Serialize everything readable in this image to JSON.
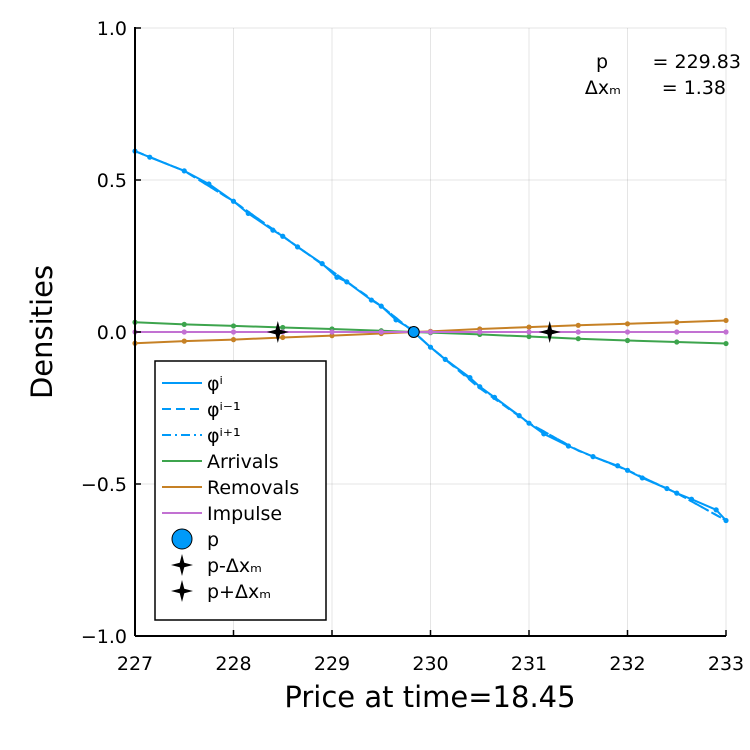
{
  "chart_data": {
    "type": "line",
    "title": "",
    "xlabel": "Price at time=18.45",
    "ylabel": "Densities",
    "xlim": [
      227,
      233
    ],
    "ylim": [
      -1.0,
      1.0
    ],
    "xticks": [
      "227",
      "228",
      "229",
      "230",
      "231",
      "232",
      "233"
    ],
    "yticks": [
      "1.0",
      "0.5",
      "0.0",
      "−0.5",
      "−1.0"
    ],
    "grid": true,
    "legend_position": "bottom-left",
    "annotation": {
      "line1_label": "p",
      "line1_value": "= 229.83",
      "line2_label": "Δxₘ",
      "line2_value": "=   1.38"
    },
    "series": [
      {
        "name": "φⁱ",
        "style": "solid",
        "color": "#009af9",
        "x": [
          227.0,
          227.15,
          227.5,
          227.75,
          228.0,
          228.15,
          228.4,
          228.5,
          228.65,
          228.9,
          229.05,
          229.15,
          229.4,
          229.5,
          229.65,
          229.8,
          229.83,
          230.0,
          230.15,
          230.4,
          230.5,
          230.65,
          230.9,
          231.0,
          231.15,
          231.4,
          231.65,
          231.9,
          232.0,
          232.15,
          232.4,
          232.5,
          232.65,
          232.9,
          233.0
        ],
        "y": [
          0.595,
          0.575,
          0.53,
          0.487,
          0.43,
          0.39,
          0.335,
          0.315,
          0.28,
          0.225,
          0.18,
          0.165,
          0.105,
          0.085,
          0.04,
          0.01,
          0.0,
          -0.05,
          -0.09,
          -0.15,
          -0.18,
          -0.215,
          -0.275,
          -0.3,
          -0.335,
          -0.375,
          -0.41,
          -0.44,
          -0.455,
          -0.48,
          -0.515,
          -0.53,
          -0.55,
          -0.585,
          -0.62
        ]
      },
      {
        "name": "φⁱ⁻¹",
        "style": "dashed",
        "color": "#009af9",
        "x": [
          227.0,
          227.5,
          228.0,
          228.5,
          229.0,
          229.5,
          229.83,
          230.0,
          230.5,
          231.0,
          231.5,
          232.0,
          232.5,
          233.0
        ],
        "y": [
          0.595,
          0.53,
          0.43,
          0.315,
          0.2,
          0.085,
          0.0,
          -0.05,
          -0.185,
          -0.3,
          -0.39,
          -0.455,
          -0.53,
          -0.62
        ]
      },
      {
        "name": "φⁱ⁺¹",
        "style": "dashdot",
        "color": "#009af9",
        "x": [
          227.0,
          227.5,
          228.0,
          228.5,
          229.0,
          229.5,
          229.83,
          230.0,
          230.5,
          231.0,
          231.5,
          232.0,
          232.5,
          233.0
        ],
        "y": [
          0.595,
          0.53,
          0.43,
          0.315,
          0.2,
          0.085,
          0.0,
          -0.05,
          -0.18,
          -0.3,
          -0.39,
          -0.455,
          -0.53,
          -0.62
        ]
      },
      {
        "name": "Arrivals",
        "style": "solid",
        "color": "#3da44d",
        "x": [
          227.0,
          227.5,
          228.0,
          228.5,
          229.0,
          229.5,
          229.83,
          230.0,
          230.5,
          231.0,
          231.5,
          232.0,
          232.5,
          233.0
        ],
        "y": [
          0.032,
          0.025,
          0.02,
          0.015,
          0.01,
          0.004,
          0.0,
          -0.002,
          -0.008,
          -0.015,
          -0.022,
          -0.028,
          -0.033,
          -0.038
        ]
      },
      {
        "name": "Removals",
        "style": "solid",
        "color": "#c68125",
        "x": [
          227.0,
          227.5,
          228.0,
          228.5,
          229.0,
          229.5,
          229.83,
          230.0,
          230.5,
          231.0,
          231.5,
          232.0,
          232.5,
          233.0
        ],
        "y": [
          -0.037,
          -0.03,
          -0.025,
          -0.018,
          -0.012,
          -0.005,
          0.0,
          0.002,
          0.01,
          0.016,
          0.022,
          0.027,
          0.032,
          0.038
        ]
      },
      {
        "name": "Impulse",
        "style": "solid",
        "color": "#c271d2",
        "x": [
          227.0,
          227.5,
          228.0,
          228.5,
          229.0,
          229.5,
          229.83,
          230.0,
          230.5,
          231.0,
          231.5,
          232.0,
          232.5,
          233.0
        ],
        "y": [
          0.0,
          0.0,
          0.0,
          0.0,
          0.0,
          0.0,
          0.0,
          0.0,
          0.0,
          0.0,
          0.0,
          0.0,
          0.0,
          0.0
        ]
      }
    ],
    "markers": [
      {
        "name": "p",
        "shape": "circle",
        "color": "#009af9",
        "x": 229.83,
        "y": 0.0
      },
      {
        "name": "p-Δxₘ",
        "shape": "star4",
        "color": "#000000",
        "x": 228.45,
        "y": 0.0
      },
      {
        "name": "p+Δxₘ",
        "shape": "star4",
        "color": "#000000",
        "x": 231.21,
        "y": 0.0
      }
    ]
  }
}
